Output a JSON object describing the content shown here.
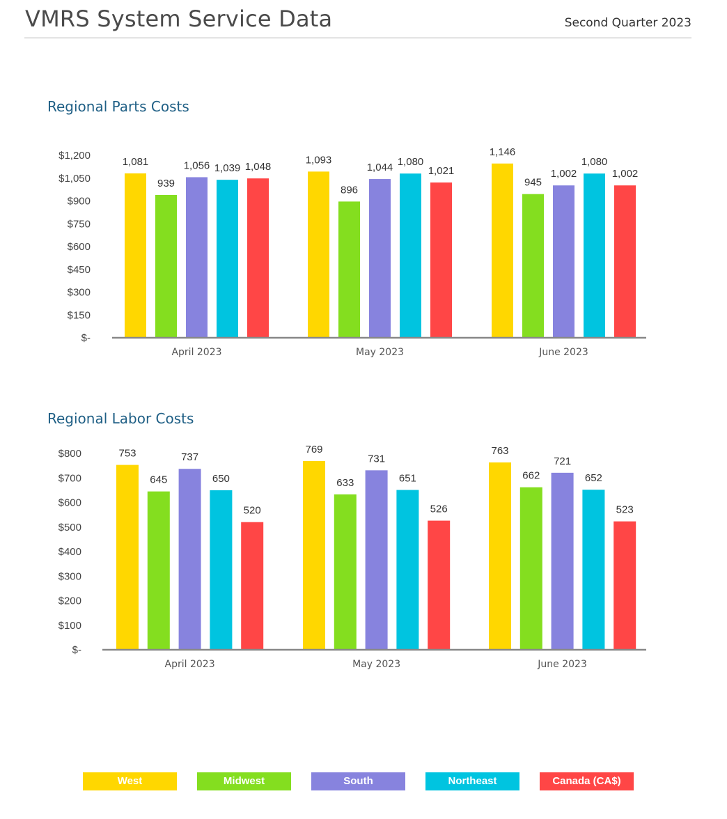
{
  "header": {
    "title": "VMRS System Service Data",
    "quarter": "Second Quarter 2023"
  },
  "colors": {
    "West": "#FFD700",
    "Midwest": "#84DE1F",
    "South": "#8783DE",
    "Northeast": "#00C4E0",
    "Canada (CA$)": "#FF4646"
  },
  "legend": [
    "West",
    "Midwest",
    "South",
    "Northeast",
    "Canada (CA$)"
  ],
  "chart_data": [
    {
      "type": "bar",
      "title": "Regional Parts Costs",
      "categories": [
        "April 2023",
        "May 2023",
        "June 2023"
      ],
      "ylim": [
        0,
        1200
      ],
      "yticks": [
        "$-",
        "$150",
        "$300",
        "$450",
        "$600",
        "$750",
        "$900",
        "$1,050",
        "$1,200"
      ],
      "ytick_values": [
        0,
        150,
        300,
        450,
        600,
        750,
        900,
        1050,
        1200
      ],
      "series": [
        {
          "name": "West",
          "values": [
            1081,
            1093,
            1146
          ],
          "labels": [
            "1,081",
            "1,093",
            "1,146"
          ]
        },
        {
          "name": "Midwest",
          "values": [
            939,
            896,
            945
          ],
          "labels": [
            "939",
            "896",
            "945"
          ]
        },
        {
          "name": "South",
          "values": [
            1056,
            1044,
            1002
          ],
          "labels": [
            "1,056",
            "1,044",
            "1,002"
          ]
        },
        {
          "name": "Northeast",
          "values": [
            1039,
            1080,
            1080
          ],
          "labels": [
            "1,039",
            "1,080",
            "1,080"
          ]
        },
        {
          "name": "Canada (CA$)",
          "values": [
            1048,
            1021,
            1002
          ],
          "labels": [
            "1,048",
            "1,021",
            "1,002"
          ]
        }
      ]
    },
    {
      "type": "bar",
      "title": "Regional Labor Costs",
      "categories": [
        "April 2023",
        "May 2023",
        "June 2023"
      ],
      "ylim": [
        0,
        800
      ],
      "yticks": [
        "$-",
        "$100",
        "$200",
        "$300",
        "$400",
        "$500",
        "$600",
        "$700",
        "$800"
      ],
      "ytick_values": [
        0,
        100,
        200,
        300,
        400,
        500,
        600,
        700,
        800
      ],
      "series": [
        {
          "name": "West",
          "values": [
            753,
            769,
            763
          ],
          "labels": [
            "753",
            "769",
            "763"
          ]
        },
        {
          "name": "Midwest",
          "values": [
            645,
            633,
            662
          ],
          "labels": [
            "645",
            "633",
            "662"
          ]
        },
        {
          "name": "South",
          "values": [
            737,
            731,
            721
          ],
          "labels": [
            "737",
            "731",
            "721"
          ]
        },
        {
          "name": "Northeast",
          "values": [
            650,
            651,
            652
          ],
          "labels": [
            "650",
            "651",
            "652"
          ]
        },
        {
          "name": "Canada (CA$)",
          "values": [
            520,
            526,
            523
          ],
          "labels": [
            "520",
            "526",
            "523"
          ]
        }
      ]
    }
  ]
}
